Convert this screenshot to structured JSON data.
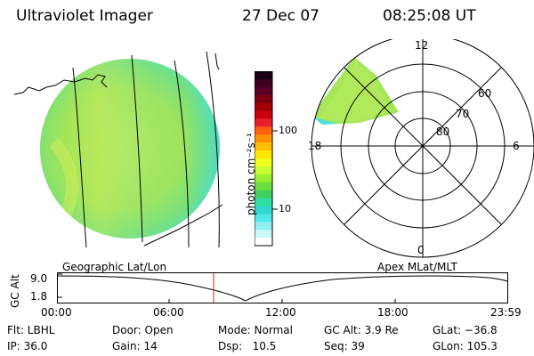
{
  "header": {
    "instrument": "Ultraviolet Imager",
    "date": "27 Dec 07",
    "time": "08:25:08 UT"
  },
  "colorbar": {
    "unit_label": "photon cm⁻²s⁻¹",
    "tick_labels": [
      "100",
      "10"
    ],
    "colors_top_to_bottom": [
      "#1a0014",
      "#3b0020",
      "#5a0028",
      "#7a0010",
      "#a00008",
      "#c80010",
      "#e8202a",
      "#ff6010",
      "#ff9000",
      "#ffc000",
      "#ffe800",
      "#f0ff20",
      "#c8ff30",
      "#98f030",
      "#68e040",
      "#40d060",
      "#30e0a0",
      "#30d8d0",
      "#50e8e8",
      "#90f0f0",
      "#c8f8f8",
      "#ffffff"
    ]
  },
  "polar_plot": {
    "mlt_labels": {
      "top": "12",
      "left": "18",
      "right": "6",
      "bottom": "0"
    },
    "lat_labels": [
      "60",
      "70",
      "80"
    ]
  },
  "geo_caption": "Geographic Lat/Lon",
  "apex_caption": "Apex MLat/MLT",
  "alt_plot": {
    "axis_label": "GC Alt",
    "y_ticks": [
      "9.0",
      "1.8"
    ],
    "time_ticks": [
      "00:00",
      "06:00",
      "12:00",
      "18:00",
      "23:59"
    ]
  },
  "status": {
    "flt": "Flt: LBHL",
    "door": "Door: Open",
    "mode": "Mode: Normal",
    "gc_alt": "GC Alt: 3.9 Re",
    "glat": "GLat: −36.8",
    "ip": "IP: 36.0",
    "gain": "Gain: 14",
    "dsp": "Dsp:   10.5",
    "seq": "Seq: 39",
    "glon": "GLon: 105.3"
  },
  "colors": {
    "aurora_main": "#a6e65a",
    "aurora_edge": "#52e0d6",
    "marker": "#cc2222"
  }
}
